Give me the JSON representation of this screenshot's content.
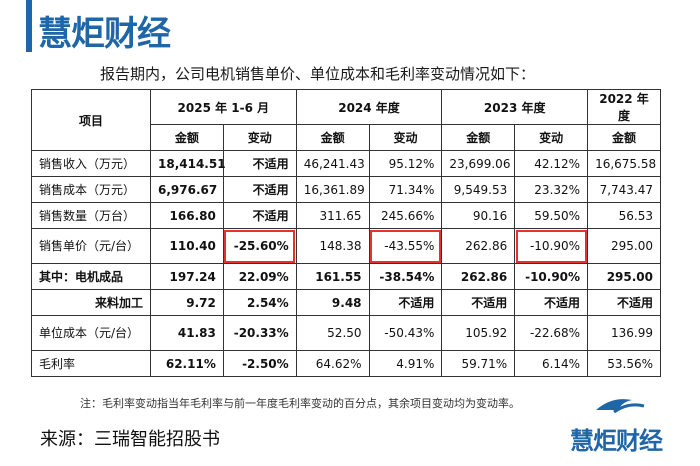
{
  "logo": {
    "text": "慧炬财经",
    "color": "#1f66a8"
  },
  "intro": "报告期内，公司电机销售单价、单位成本和毛利率变动情况如下：",
  "table": {
    "col_header": "项目",
    "periods": [
      "2025 年 1-6 月",
      "2024 年度",
      "2023 年度",
      "2022 年度"
    ],
    "subheaders": [
      "金额",
      "变动",
      "金额",
      "变动",
      "金额",
      "变动",
      "金额"
    ],
    "rows": [
      {
        "label": "销售收入（万元）",
        "cells": [
          "18,414.51",
          "不适用",
          "46,241.43",
          "95.12%",
          "23,699.06",
          "42.12%",
          "16,675.58"
        ]
      },
      {
        "label": "销售成本（万元）",
        "cells": [
          "6,976.67",
          "不适用",
          "16,361.89",
          "71.34%",
          "9,549.53",
          "23.32%",
          "7,743.47"
        ]
      },
      {
        "label": "销售数量（万台）",
        "cells": [
          "166.80",
          "不适用",
          "311.65",
          "245.66%",
          "90.16",
          "59.50%",
          "56.53"
        ]
      },
      {
        "label": "销售单价（元/台）",
        "cells": [
          "110.40",
          "-25.60%",
          "148.38",
          "-43.55%",
          "262.86",
          "-10.90%",
          "295.00"
        ]
      },
      {
        "label": "其中：电机成品",
        "cells": [
          "197.24",
          "22.09%",
          "161.55",
          "-38.54%",
          "262.86",
          "-10.90%",
          "295.00"
        ]
      },
      {
        "label": "来料加工",
        "cells": [
          "9.72",
          "2.54%",
          "9.48",
          "不适用",
          "不适用",
          "不适用",
          "不适用"
        ]
      },
      {
        "label": "单位成本（元/台）",
        "cells": [
          "41.83",
          "-20.33%",
          "52.50",
          "-50.43%",
          "105.92",
          "-22.68%",
          "136.99"
        ]
      },
      {
        "label": "毛利率",
        "cells": [
          "62.11%",
          "-2.50%",
          "64.62%",
          "4.91%",
          "59.71%",
          "6.14%",
          "53.56%"
        ]
      }
    ]
  },
  "note": "注：毛利率变动指当年毛利率与前一年度毛利率变动的百分点，其余项目变动均为变动率。",
  "source": "来源：三瑞智能招股书",
  "highlight_color": "#e8312f"
}
